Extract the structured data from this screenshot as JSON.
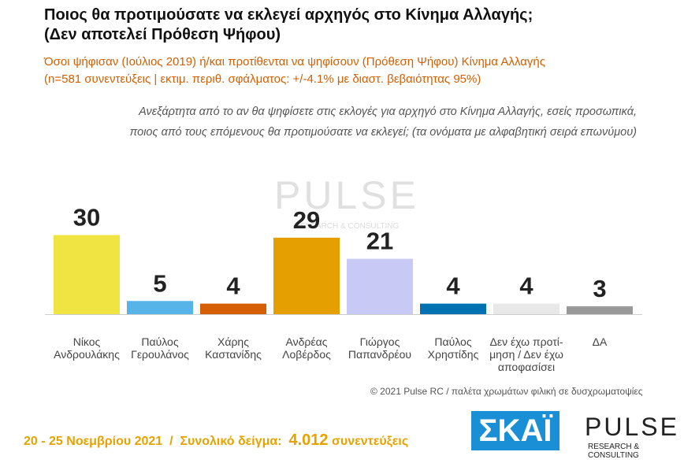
{
  "chart_data": {
    "type": "bar",
    "title": [
      "Ποιος θα προτιμούσατε να εκλεγεί αρχηγός στο Κίνημα Αλλαγής;",
      "(Δεν αποτελεί Πρόθεση Ψήφου)"
    ],
    "subtitle": [
      "Όσοι ψήφισαν (Ιούλιος 2019) ή/και προτίθενται να ψηφίσουν  (Πρόθεση Ψήφου) Κίνημα Αλλαγής",
      "(n=581 συνεντεύξεις | εκτιμ. περιθ. σφάλματος: +/-4.1% με διαστ. βεβαιότητας 95%)"
    ],
    "question": [
      "Ανεξάρτητα από το αν θα ψηφίσετε στις εκλογές για αρχηγό στο Κίνημα Αλλαγής, εσείς προσωπικά,",
      "ποιος από τους επόμενους θα προτιμούσατε να εκλεγεί; (τα ονόματα με αλφαβητική σειρά επωνύμου)"
    ],
    "categories": [
      "Νίκος\nΑνδρουλάκης",
      "Παύλος\nΓερουλάνος",
      "Χάρης\nΚαστανίδης",
      "Ανδρέας\nΛοβέρδος",
      "Γιώργος\nΠαπανδρέου",
      "Παύλος\nΧρηστίδης",
      "Δεν έχω προτί-\nμηση / Δεν έχω\nαποφασίσει",
      "ΔΑ"
    ],
    "values": [
      30,
      5,
      4,
      29,
      21,
      4,
      4,
      3
    ],
    "colors": [
      "#f0e442",
      "#56b4e9",
      "#d55e00",
      "#e69f00",
      "#c9c9f5",
      "#0072b2",
      "#e8e8e8",
      "#999999"
    ],
    "credit": "© 2021 Pulse RC  /  παλέτα χρωμάτων φιλική σε δυσχρωματοψίες",
    "footer": {
      "date": "20 - 25  Νοεμβρίου 2021",
      "separator": "/",
      "sample_label": "Συνολικό δείγμα:",
      "sample": "4.012",
      "unit": "συνεντεύξεις"
    },
    "logos": {
      "skai": "ΣΚΑΪ",
      "pulse": "PULSE",
      "pulse_sub": "RESEARCH & CONSULTING"
    }
  }
}
